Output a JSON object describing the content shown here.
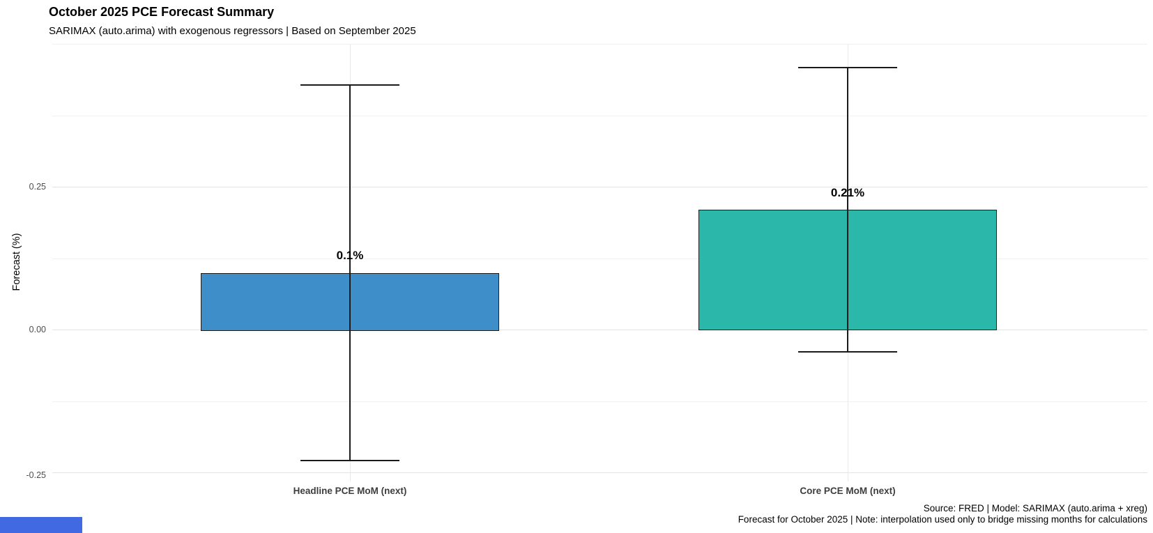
{
  "header": {
    "title": "October 2025 PCE Forecast Summary",
    "subtitle": "SARIMAX (auto.arima) with exogenous regressors | Based on September 2025"
  },
  "chart_data": {
    "type": "bar",
    "title": "October 2025 PCE Forecast Summary",
    "subtitle": "SARIMAX (auto.arima) with exogenous regressors | Based on September 2025",
    "ylabel": "Forecast (%)",
    "xlabel": "",
    "categories": [
      "Headline PCE MoM (next)",
      "Core PCE MoM (next)"
    ],
    "values": [
      0.1,
      0.21
    ],
    "value_labels": [
      "0.1%",
      "0.21%"
    ],
    "error_low": [
      -0.23,
      -0.04
    ],
    "error_high": [
      0.43,
      0.46
    ],
    "bar_colors": [
      "#3d8ec9",
      "#2bb8aa"
    ],
    "yticks": [
      0.25,
      0.0,
      -0.25
    ],
    "ytick_labels": [
      "0.25",
      "0.00",
      "-0.25"
    ],
    "minor_gridlines": [
      0.5,
      0.375,
      0.125,
      -0.125
    ],
    "ylim": [
      -0.265,
      0.5
    ],
    "grid": true,
    "legend": false
  },
  "caption": {
    "line1": "Source: FRED | Model: SARIMAX (auto.arima + xreg)",
    "line2": "Forecast for October 2025 | Note: interpolation used only to bridge missing months for calculations"
  },
  "decorations": {
    "status_strip_color": "#4169e1"
  }
}
